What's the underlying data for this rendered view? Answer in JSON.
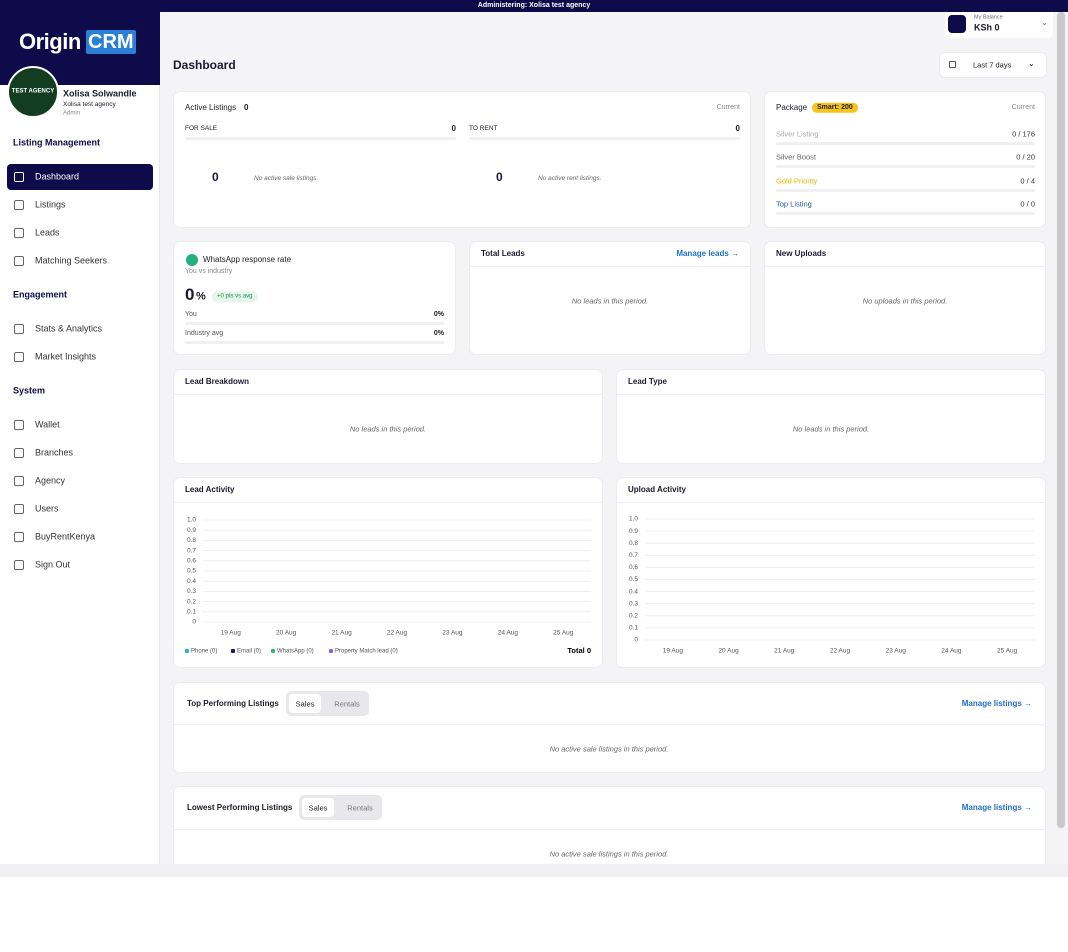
{
  "banner": "Administering: Xolisa test agency",
  "sidebar": {
    "logo": {
      "left": "Origin",
      "right": "CRM"
    },
    "avatar_text": "TEST AGENCY",
    "user": {
      "name": "Xolisa Solwandle",
      "agency": "Xolisa test agency",
      "role": "Admin"
    },
    "sections": [
      {
        "title": "Listing Management",
        "items": [
          "Dashboard",
          "Listings",
          "Leads",
          "Matching Seekers"
        ]
      },
      {
        "title": "Engagement",
        "items": [
          "Stats & Analytics",
          "Market Insights"
        ]
      },
      {
        "title": "System",
        "items": [
          "Wallet",
          "Branches",
          "Agency",
          "Users",
          "BuyRentKenya",
          "Sign Out"
        ]
      }
    ]
  },
  "balance": {
    "label": "My Balance",
    "value": "KSh 0"
  },
  "header": {
    "title": "Dashboard",
    "range": "Last 7 days"
  },
  "active_listings": {
    "title": "Active Listings",
    "count": "0",
    "badge": "Current",
    "for_sale": {
      "label": "FOR SALE",
      "count": "0",
      "big": "0",
      "empty": "No active sale listings."
    },
    "to_rent": {
      "label": "TO RENT",
      "count": "0",
      "big": "0",
      "empty": "No active rent listings."
    }
  },
  "package": {
    "title": "Package",
    "plan": "Smart: 200",
    "badge": "Current",
    "rows": [
      {
        "label": "Silver Listing",
        "value": "0 / 176",
        "color": "#a8a8b0"
      },
      {
        "label": "Silver Boost",
        "value": "0 / 20",
        "color": "#666670"
      },
      {
        "label": "Gold Priority",
        "value": "0 / 4",
        "color": "#e8b800"
      },
      {
        "label": "Top Listing",
        "value": "0 / 0",
        "color": "#1f5c9e"
      }
    ]
  },
  "whatsapp": {
    "title": "WhatsApp response rate",
    "subtitle": "You vs industry",
    "value": "0",
    "unit": "%",
    "delta": "+0 pts vs avg",
    "rows": [
      {
        "label": "You",
        "value": "0%"
      },
      {
        "label": "Industry avg",
        "value": "0%"
      }
    ]
  },
  "total_leads": {
    "title": "Total Leads",
    "link": "Manage leads →",
    "empty": "No leads in this period."
  },
  "new_uploads": {
    "title": "New Uploads",
    "empty": "No uploads in this period."
  },
  "lead_breakdown": {
    "title": "Lead Breakdown",
    "empty": "No leads in this period."
  },
  "lead_type": {
    "title": "Lead Type",
    "empty": "No leads in this period."
  },
  "lead_activity": {
    "title": "Lead Activity",
    "x": [
      "19 Aug",
      "20 Aug",
      "21 Aug",
      "22 Aug",
      "23 Aug",
      "24 Aug",
      "25 Aug"
    ],
    "ylim": [
      0,
      1
    ],
    "yticks": [
      0,
      0.1,
      0.2,
      0.3,
      0.4,
      0.5,
      0.6,
      0.7,
      0.8,
      0.9,
      {
        "value": 1,
        "label": "1.0"
      }
    ],
    "grid": true,
    "legend": [
      {
        "label": "Phone (0)",
        "color": "#22b8cf"
      },
      {
        "label": "Email (0)",
        "color": "#1e1b5c"
      },
      {
        "label": "WhatsApp (0)",
        "color": "#22c55e"
      },
      {
        "label": "Property Match lead (0)",
        "color": "#8b5cf6"
      }
    ],
    "total": "Total 0"
  },
  "upload_activity": {
    "title": "Upload Activity",
    "x": [
      "19 Aug",
      "20 Aug",
      "21 Aug",
      "22 Aug",
      "23 Aug",
      "24 Aug",
      "25 Aug"
    ],
    "ylim": [
      0,
      1
    ],
    "yticks": [
      0,
      0.1,
      0.2,
      0.3,
      0.4,
      0.5,
      0.6,
      0.7,
      0.8,
      0.9,
      {
        "value": 1,
        "label": "1.0"
      }
    ],
    "grid": true
  },
  "top_listings": {
    "title": "Top Performing Listings",
    "tabs": [
      "Sales",
      "Rentals"
    ],
    "link": "Manage listings →",
    "empty": "No active sale listings in this period."
  },
  "lowest_listings": {
    "title": "Lowest Performing Listings",
    "tabs": [
      "Sales",
      "Rentals"
    ],
    "link": "Manage listings →",
    "empty": "No active sale listings in this period."
  }
}
